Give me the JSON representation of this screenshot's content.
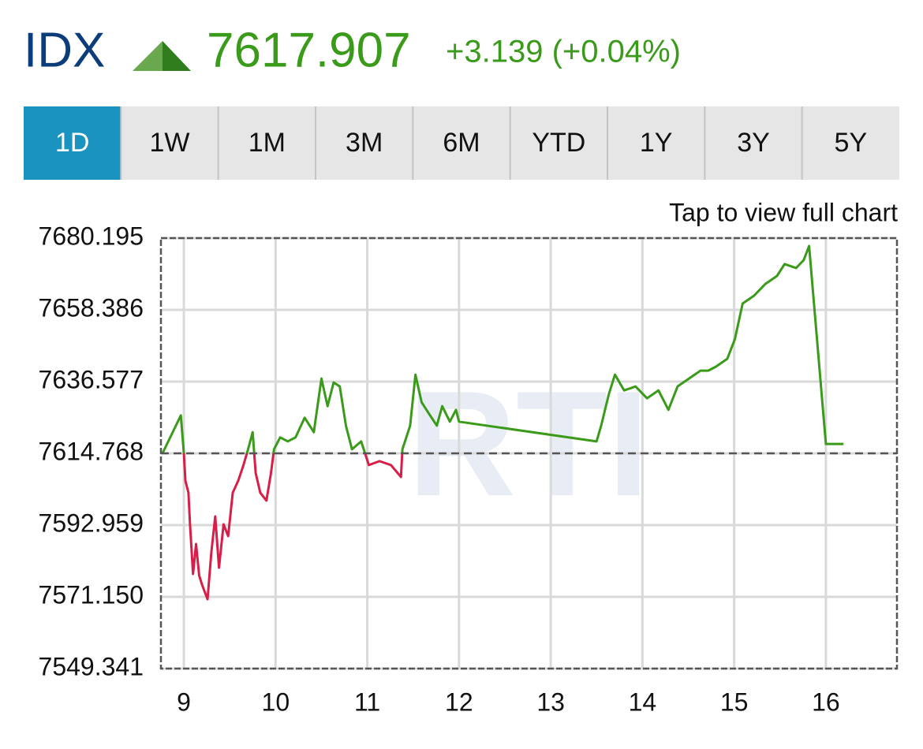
{
  "header": {
    "symbol": "IDX",
    "price": "7617.907",
    "change": "+3.139 (+0.04%)"
  },
  "tabs": [
    "1D",
    "1W",
    "1M",
    "3M",
    "6M",
    "YTD",
    "1Y",
    "3Y",
    "5Y"
  ],
  "active_tab": 0,
  "chart_note": "Tap to view full chart",
  "chart_data": {
    "type": "line",
    "watermark": "RTI",
    "x": [
      8.767,
      8.967,
      9.0,
      9.017,
      9.05,
      9.067,
      9.1,
      9.133,
      9.167,
      9.2,
      9.258,
      9.3,
      9.342,
      9.383,
      9.433,
      9.483,
      9.533,
      9.592,
      9.65,
      9.7,
      9.75,
      9.783,
      9.833,
      9.9,
      9.95,
      9.983,
      10.05,
      10.133,
      10.217,
      10.317,
      10.417,
      10.5,
      10.567,
      10.633,
      10.7,
      10.767,
      10.833,
      10.933,
      11.017,
      11.133,
      11.258,
      11.367,
      11.383,
      11.467,
      11.525,
      11.592,
      11.675,
      11.758,
      11.817,
      11.9,
      11.967,
      12.0,
      13.5,
      13.55,
      13.633,
      13.7,
      13.8,
      13.925,
      14.05,
      14.175,
      14.283,
      14.383,
      14.508,
      14.633,
      14.717,
      14.8,
      14.925,
      15.008,
      15.092,
      15.217,
      15.342,
      15.467,
      15.55,
      15.675,
      15.758,
      15.817,
      16.0,
      16.192
    ],
    "series": [
      {
        "name": "IDX",
        "values": [
          7614.77,
          7626.3,
          7614.77,
          7606.4,
          7602.8,
          7593.2,
          7578.1,
          7587.2,
          7577.6,
          7574.7,
          7570.4,
          7584.8,
          7595.6,
          7580.0,
          7593.2,
          7589.6,
          7602.8,
          7606.4,
          7611.2,
          7616.0,
          7621.2,
          7608.8,
          7602.8,
          7600.4,
          7608.8,
          7616.0,
          7619.6,
          7618.4,
          7619.6,
          7625.6,
          7621.2,
          7637.5,
          7629.1,
          7636.3,
          7635.1,
          7623.2,
          7616.0,
          7618.4,
          7611.2,
          7612.4,
          7611.2,
          7607.6,
          7616.0,
          7623.2,
          7638.7,
          7630.3,
          7626.7,
          7623.2,
          7629.1,
          7624.4,
          7628.0,
          7624.4,
          7618.4,
          7623.2,
          7632.7,
          7638.7,
          7633.9,
          7635.1,
          7631.5,
          7633.9,
          7628.0,
          7635.1,
          7637.5,
          7639.9,
          7639.9,
          7641.1,
          7643.5,
          7649.5,
          7660.3,
          7662.7,
          7666.3,
          7668.7,
          7672.3,
          7671.1,
          7673.5,
          7677.8,
          7617.6,
          7617.6
        ]
      }
    ],
    "reference_line": 7614.768,
    "above_color": "#3a9a1a",
    "below_color": "#d81e48",
    "xlim": [
      8.75,
      16.775
    ],
    "xticks": [
      9,
      10,
      11,
      12,
      13,
      14,
      15,
      16
    ],
    "ylim": [
      7549.341,
      7680.195
    ],
    "yticks": [
      7549.341,
      {
        "value": 7571.15,
        "label": "7571.150"
      },
      7592.959,
      7614.768,
      7636.577,
      7658.386,
      7680.195
    ],
    "grid": true
  }
}
